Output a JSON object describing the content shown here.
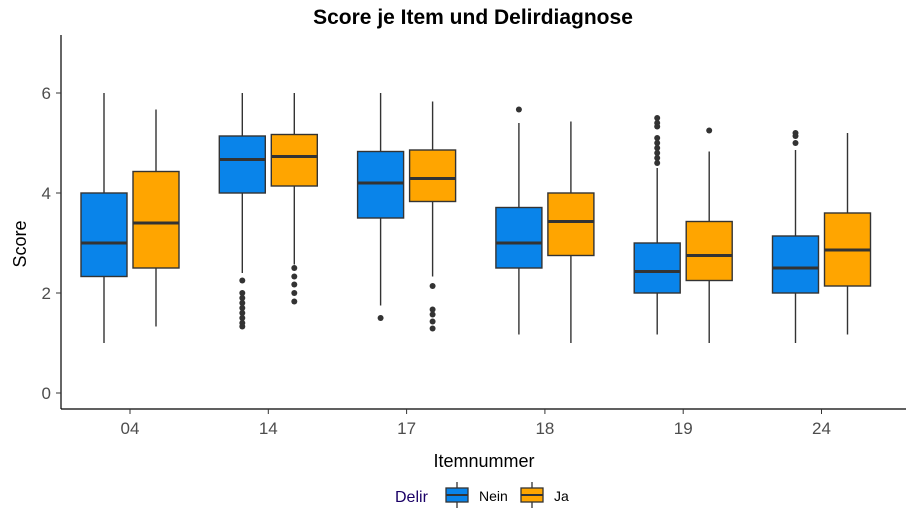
{
  "chart_data": {
    "type": "boxplot",
    "title": "Score je Item und Delirdiagnose",
    "xlabel": "Itemnummer",
    "ylabel": "Score",
    "ylim": [
      -0.35,
      7.2
    ],
    "yticks": [
      0,
      2,
      4,
      6
    ],
    "categories": [
      "04",
      "14",
      "17",
      "18",
      "19",
      "24"
    ],
    "legend": {
      "title": "Delir",
      "position": "bottom"
    },
    "series": [
      {
        "name": "Nein",
        "color": "#0984ea",
        "boxes": [
          {
            "min": 1.0,
            "q1": 2.33,
            "median": 3.0,
            "q3": 4.0,
            "max": 6.0,
            "outliers": []
          },
          {
            "min": 2.4,
            "q1": 4.0,
            "median": 4.67,
            "q3": 5.14,
            "max": 6.0,
            "outliers": [
              2.25,
              2.0,
              1.9,
              1.8,
              1.7,
              1.6,
              1.5,
              1.4,
              1.33
            ]
          },
          {
            "min": 1.75,
            "q1": 3.5,
            "median": 4.2,
            "q3": 4.83,
            "max": 6.0,
            "outliers": [
              1.5
            ]
          },
          {
            "min": 1.17,
            "q1": 2.5,
            "median": 3.0,
            "q3": 3.71,
            "max": 5.4,
            "outliers": [
              5.67
            ]
          },
          {
            "min": 1.17,
            "q1": 2.0,
            "median": 2.43,
            "q3": 3.0,
            "max": 4.5,
            "outliers": [
              5.5,
              5.4,
              5.33,
              5.1,
              5.0,
              4.9,
              4.8,
              4.7,
              4.6
            ]
          },
          {
            "min": 1.0,
            "q1": 2.0,
            "median": 2.5,
            "q3": 3.14,
            "max": 4.86,
            "outliers": [
              5.2,
              5.14,
              5.0
            ]
          }
        ]
      },
      {
        "name": "Ja",
        "color": "#ffa500",
        "boxes": [
          {
            "min": 1.33,
            "q1": 2.5,
            "median": 3.4,
            "q3": 4.43,
            "max": 5.67,
            "outliers": []
          },
          {
            "min": 2.57,
            "q1": 4.14,
            "median": 4.73,
            "q3": 5.17,
            "max": 6.0,
            "outliers": [
              2.5,
              2.33,
              2.17,
              2.0,
              1.83
            ]
          },
          {
            "min": 2.33,
            "q1": 3.83,
            "median": 4.29,
            "q3": 4.86,
            "max": 5.83,
            "outliers": [
              2.14,
              1.67,
              1.57,
              1.43,
              1.29
            ]
          },
          {
            "min": 1.0,
            "q1": 2.75,
            "median": 3.43,
            "q3": 4.0,
            "max": 5.43,
            "outliers": []
          },
          {
            "min": 1.0,
            "q1": 2.25,
            "median": 2.75,
            "q3": 3.43,
            "max": 4.83,
            "outliers": [
              5.25
            ]
          },
          {
            "min": 1.17,
            "q1": 2.14,
            "median": 2.86,
            "q3": 3.6,
            "max": 5.2,
            "outliers": []
          }
        ]
      }
    ]
  }
}
